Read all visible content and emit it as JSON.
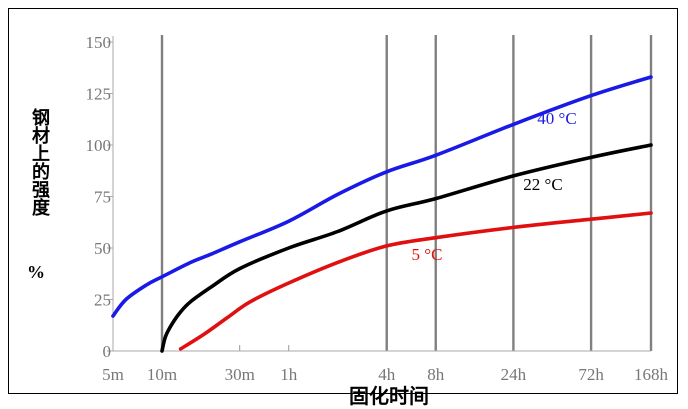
{
  "chart_data": {
    "type": "line",
    "xlabel": "固化时间",
    "ylabel": "钢材上的强度",
    "yunit": "%",
    "ylim": [
      0,
      150
    ],
    "yticks": [
      0,
      25,
      50,
      75,
      100,
      125,
      150
    ],
    "x_scale": "log",
    "xticks": [
      {
        "label": "5m",
        "minutes": 5,
        "grid": false
      },
      {
        "label": "10m",
        "minutes": 10,
        "grid": true
      },
      {
        "label": "30m",
        "minutes": 30,
        "grid": false
      },
      {
        "label": "1h",
        "minutes": 60,
        "grid": false
      },
      {
        "label": "4h",
        "minutes": 240,
        "grid": true
      },
      {
        "label": "8h",
        "minutes": 480,
        "grid": true
      },
      {
        "label": "24h",
        "minutes": 1440,
        "grid": true
      },
      {
        "label": "72h",
        "minutes": 4320,
        "grid": true
      },
      {
        "label": "168h",
        "minutes": 10080,
        "grid": true
      }
    ],
    "series": [
      {
        "name": "40 °C",
        "color": "#1a1ae6",
        "points": [
          [
            5,
            17
          ],
          [
            6,
            25
          ],
          [
            8,
            32
          ],
          [
            10,
            36
          ],
          [
            15,
            43
          ],
          [
            20,
            47
          ],
          [
            30,
            53
          ],
          [
            60,
            63
          ],
          [
            120,
            76
          ],
          [
            240,
            87
          ],
          [
            480,
            95
          ],
          [
            1440,
            110
          ],
          [
            4320,
            124
          ],
          [
            10080,
            133
          ]
        ]
      },
      {
        "name": "22 °C",
        "color": "#000000",
        "points": [
          [
            10,
            0
          ],
          [
            10.5,
            7
          ],
          [
            11.5,
            13
          ],
          [
            13,
            19
          ],
          [
            15,
            24
          ],
          [
            20,
            31
          ],
          [
            30,
            40
          ],
          [
            60,
            50
          ],
          [
            120,
            58
          ],
          [
            240,
            68
          ],
          [
            480,
            74
          ],
          [
            1440,
            85
          ],
          [
            4320,
            94
          ],
          [
            10080,
            100
          ]
        ]
      },
      {
        "name": "5 °C",
        "color": "#e01010",
        "points": [
          [
            13,
            1
          ],
          [
            18,
            8
          ],
          [
            25,
            16
          ],
          [
            35,
            24
          ],
          [
            60,
            33
          ],
          [
            120,
            43
          ],
          [
            240,
            51
          ],
          [
            480,
            55
          ],
          [
            1440,
            60
          ],
          [
            4320,
            64
          ],
          [
            10080,
            67
          ]
        ]
      }
    ]
  }
}
